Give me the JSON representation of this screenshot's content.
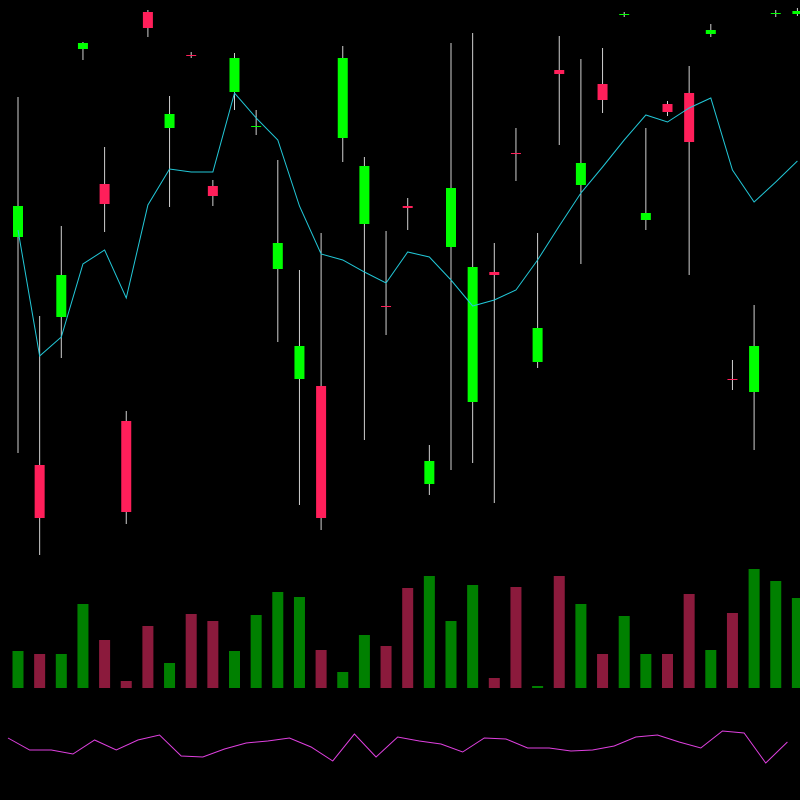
{
  "chart_data": [
    {
      "type": "candlestick",
      "open": [
        323,
        95,
        243,
        511,
        376,
        139,
        548,
        432,
        505,
        374,
        468,
        433,
        291,
        181,
        174,
        422,
        336,
        254,
        354,
        76,
        313,
        158,
        288,
        407,
        198,
        490,
        375,
        476,
        545,
        340,
        456,
        467,
        526,
        181,
        168,
        546,
        546
      ],
      "high": [
        463,
        244,
        334,
        518,
        413,
        149,
        550,
        464,
        508,
        380,
        507,
        450,
        400,
        290,
        327,
        514,
        403,
        329,
        362,
        115,
        517,
        527,
        317,
        432,
        327,
        524,
        501,
        512,
        548,
        432,
        459,
        494,
        536,
        200,
        255,
        550,
        552
      ],
      "low": [
        107,
        5,
        202,
        500,
        328,
        36,
        523,
        353,
        502,
        354,
        450,
        425,
        218,
        55,
        30,
        398,
        120,
        225,
        330,
        65,
        90,
        97,
        57,
        379,
        192,
        415,
        296,
        447,
        543,
        330,
        444,
        285,
        523,
        170,
        110,
        543,
        544
      ],
      "close": [
        354,
        42,
        285,
        517,
        356,
        48,
        532,
        446,
        504,
        364,
        502,
        434,
        317,
        214,
        42,
        502,
        394,
        253,
        352,
        99,
        372,
        293,
        285,
        406,
        232,
        486,
        397,
        460,
        546,
        347,
        448,
        418,
        530,
        180,
        214,
        547,
        549
      ],
      "up_color": "#00ff00",
      "down_color": "#ff1f5a",
      "wick_color": "#d0d0d0",
      "ylim": [
        0,
        560
      ],
      "overlay": {
        "color": "#22c8d8",
        "values": [
          330,
          204,
          223,
          296,
          310,
          262,
          355,
          391,
          388,
          388,
          467,
          442,
          420,
          354,
          306,
          300,
          288,
          277,
          308,
          303,
          280,
          254,
          260,
          270,
          300,
          334,
          367,
          393,
          420,
          445,
          438,
          452,
          462,
          390,
          358,
          378,
          399
        ]
      }
    },
    {
      "type": "bar",
      "values": [
        37,
        34,
        34,
        84,
        48,
        7,
        62,
        25,
        74,
        67,
        37,
        73,
        96,
        91,
        38,
        16,
        53,
        42,
        100,
        112,
        67,
        103,
        10,
        101,
        2,
        112,
        84,
        34,
        72,
        34,
        34,
        94,
        38,
        75,
        119,
        107,
        90
      ],
      "up_color": "#008000",
      "down_color": "#8b1a3c",
      "ylim": [
        0,
        128
      ]
    },
    {
      "type": "line",
      "values": [
        62,
        50,
        50,
        46,
        60,
        50,
        60,
        65,
        44,
        43,
        51,
        57,
        59,
        62,
        53,
        39,
        66,
        43,
        63,
        59,
        56,
        48,
        62,
        61,
        52,
        52,
        49,
        50,
        54,
        63,
        65,
        58,
        52,
        69,
        67,
        37,
        58
      ],
      "color": "#e040e0",
      "ylim": [
        30,
        80
      ]
    }
  ]
}
